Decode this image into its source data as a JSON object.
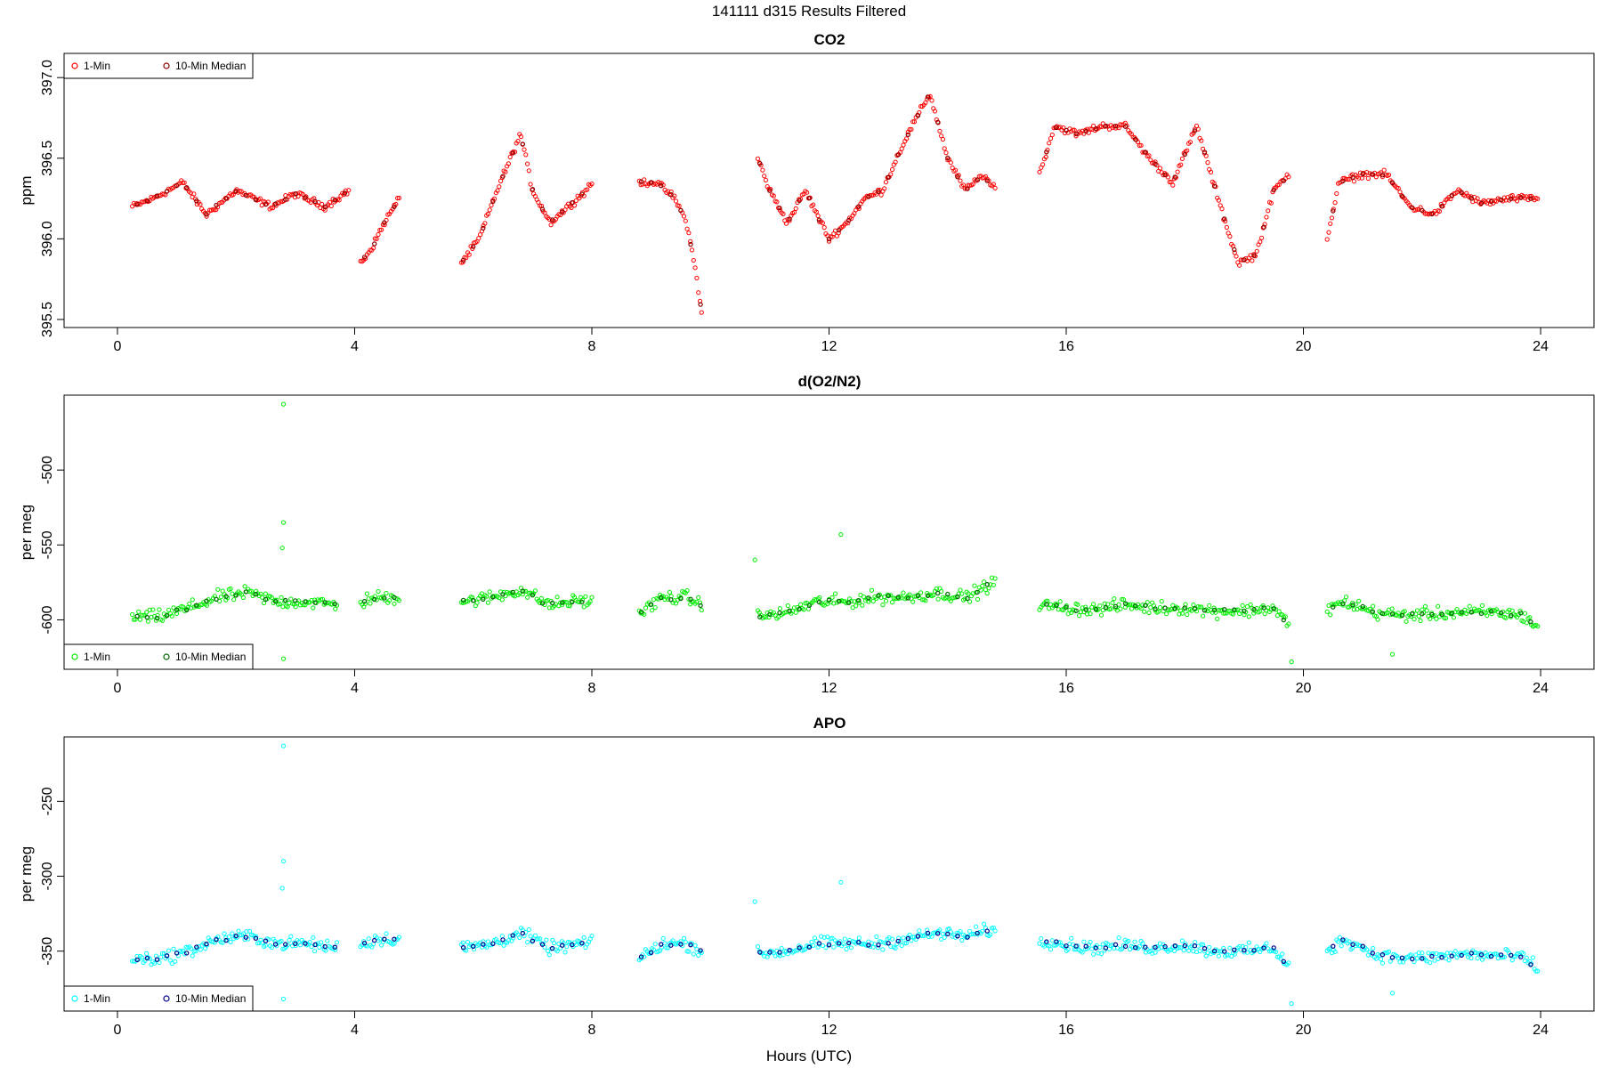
{
  "figure": {
    "title": "141111   d315   Results Filtered",
    "xlabel": "Hours (UTC)"
  },
  "chart_data": [
    {
      "type": "scatter",
      "title": "CO2",
      "ylabel": "ppm",
      "xlim": [
        -0.9,
        24.9
      ],
      "ylim": [
        395.45,
        397.15
      ],
      "xticks": [
        0,
        4,
        8,
        12,
        16,
        20,
        24
      ],
      "xtick_labels": [
        "0",
        "4",
        "8",
        "12",
        "16",
        "20",
        "24"
      ],
      "yticks": [
        395.5,
        396.0,
        396.5,
        397.0
      ],
      "ytick_labels": [
        "395.5",
        "396.0",
        "396.5",
        "397.0"
      ],
      "legend_position": "top-left",
      "series": [
        {
          "name": "1-Min",
          "color": "#ff0000"
        },
        {
          "name": "10-Min Median",
          "color": "#8b0000"
        }
      ],
      "segments": [
        {
          "x": [
            0.25,
            0.6,
            1.1,
            1.5,
            2.0,
            2.6,
            3.0,
            3.5,
            3.9
          ],
          "y": [
            396.2,
            396.25,
            396.35,
            396.15,
            396.3,
            396.2,
            396.28,
            396.2,
            396.3
          ]
        },
        {
          "x": [
            4.1,
            4.3,
            4.5,
            4.75
          ],
          "y": [
            395.85,
            395.95,
            396.1,
            396.25
          ]
        },
        {
          "x": [
            5.8,
            6.1,
            6.4,
            6.8,
            7.0,
            7.3,
            7.6,
            7.9,
            8.0
          ],
          "y": [
            395.85,
            396.0,
            396.3,
            396.65,
            396.3,
            396.1,
            396.2,
            396.3,
            396.35
          ]
        },
        {
          "x": [
            8.8,
            9.1,
            9.4,
            9.6,
            9.75,
            9.85
          ],
          "y": [
            396.35,
            396.35,
            396.25,
            396.1,
            395.8,
            395.55
          ]
        },
        {
          "x": [
            10.8,
            11.0,
            11.3,
            11.6,
            12.0,
            12.3,
            12.6,
            12.9,
            13.2,
            13.4,
            13.7,
            14.0,
            14.3,
            14.6,
            14.8
          ],
          "y": [
            396.5,
            396.3,
            396.1,
            396.3,
            396.0,
            396.1,
            396.25,
            396.3,
            396.55,
            396.7,
            396.9,
            396.5,
            396.3,
            396.4,
            396.3
          ]
        },
        {
          "x": [
            15.55,
            15.8,
            16.2,
            16.6,
            17.0,
            17.4,
            17.8,
            18.2,
            18.6,
            18.9,
            19.2,
            19.5,
            19.75
          ],
          "y": [
            396.4,
            396.7,
            396.65,
            396.7,
            396.7,
            396.5,
            396.35,
            396.7,
            396.2,
            395.85,
            395.9,
            396.3,
            396.4
          ]
        },
        {
          "x": [
            20.4,
            20.6,
            21.0,
            21.4,
            21.8,
            22.2,
            22.6,
            23.0,
            23.5,
            23.95
          ],
          "y": [
            396.0,
            396.35,
            396.4,
            396.4,
            396.2,
            396.15,
            396.3,
            396.22,
            396.25,
            396.25
          ]
        }
      ]
    },
    {
      "type": "scatter",
      "title": "d(O2/N2)",
      "ylabel": "per meg",
      "xlim": [
        -0.9,
        24.9
      ],
      "ylim": [
        -633,
        -450
      ],
      "xticks": [
        0,
        4,
        8,
        12,
        16,
        20,
        24
      ],
      "xtick_labels": [
        "0",
        "4",
        "8",
        "12",
        "16",
        "20",
        "24"
      ],
      "yticks": [
        -600,
        -550,
        -500
      ],
      "ytick_labels": [
        "-600",
        "-550",
        "-500"
      ],
      "legend_position": "bottom-left",
      "series": [
        {
          "name": "1-Min",
          "color": "#00ee00"
        },
        {
          "name": "10-Min Median",
          "color": "#006400"
        }
      ],
      "segments": [
        {
          "x": [
            0.25,
            0.7,
            1.2,
            1.7,
            2.2,
            2.7,
            3.2,
            3.7
          ],
          "y": [
            -598,
            -598,
            -592,
            -585,
            -582,
            -588,
            -588,
            -590
          ]
        },
        {
          "x": [
            4.1,
            4.4,
            4.75
          ],
          "y": [
            -588,
            -585,
            -585
          ]
        },
        {
          "x": [
            5.8,
            6.3,
            6.8,
            7.3,
            7.8,
            8.0
          ],
          "y": [
            -588,
            -585,
            -580,
            -590,
            -587,
            -588
          ]
        },
        {
          "x": [
            8.8,
            9.2,
            9.6,
            9.85
          ],
          "y": [
            -596,
            -585,
            -585,
            -590
          ]
        },
        {
          "x": [
            10.8,
            11.3,
            11.8,
            12.3,
            12.8,
            13.3,
            13.8,
            14.3,
            14.8
          ],
          "y": [
            -598,
            -595,
            -588,
            -588,
            -585,
            -585,
            -582,
            -585,
            -575
          ]
        },
        {
          "x": [
            15.55,
            16.0,
            16.5,
            17.0,
            17.5,
            18.0,
            18.5,
            19.0,
            19.5,
            19.75
          ],
          "y": [
            -590,
            -592,
            -593,
            -590,
            -592,
            -592,
            -594,
            -594,
            -592,
            -603
          ]
        },
        {
          "x": [
            20.4,
            20.7,
            21.2,
            21.7,
            22.2,
            22.7,
            23.2,
            23.7,
            23.95
          ],
          "y": [
            -593,
            -588,
            -595,
            -597,
            -596,
            -595,
            -595,
            -597,
            -605
          ]
        }
      ],
      "outliers": [
        {
          "x": 2.8,
          "y": -456
        },
        {
          "x": 2.8,
          "y": -535
        },
        {
          "x": 2.78,
          "y": -552
        },
        {
          "x": 2.8,
          "y": -626
        },
        {
          "x": 12.2,
          "y": -543
        },
        {
          "x": 10.75,
          "y": -560
        },
        {
          "x": 19.8,
          "y": -628
        },
        {
          "x": 21.5,
          "y": -623
        }
      ]
    },
    {
      "type": "scatter",
      "title": "APO",
      "ylabel": "per meg",
      "xlim": [
        -0.9,
        24.9
      ],
      "ylim": [
        -390,
        -207
      ],
      "xticks": [
        0,
        4,
        8,
        12,
        16,
        20,
        24
      ],
      "xtick_labels": [
        "0",
        "4",
        "8",
        "12",
        "16",
        "20",
        "24"
      ],
      "yticks": [
        -350,
        -300,
        -250
      ],
      "ytick_labels": [
        "-350",
        "-300",
        "-250"
      ],
      "legend_position": "bottom-left",
      "series": [
        {
          "name": "1-Min",
          "color": "#00ffff"
        },
        {
          "name": "10-Min Median",
          "color": "#00008b"
        }
      ],
      "segments": [
        {
          "x": [
            0.25,
            0.7,
            1.2,
            1.7,
            2.2,
            2.7,
            3.2,
            3.7
          ],
          "y": [
            -355,
            -355,
            -350,
            -342,
            -340,
            -345,
            -345,
            -348
          ]
        },
        {
          "x": [
            4.1,
            4.4,
            4.75
          ],
          "y": [
            -345,
            -342,
            -342
          ]
        },
        {
          "x": [
            5.8,
            6.3,
            6.8,
            7.3,
            7.8,
            8.0
          ],
          "y": [
            -348,
            -345,
            -338,
            -348,
            -345,
            -345
          ]
        },
        {
          "x": [
            8.8,
            9.2,
            9.6,
            9.85
          ],
          "y": [
            -355,
            -345,
            -345,
            -350
          ]
        },
        {
          "x": [
            10.8,
            11.3,
            11.8,
            12.3,
            12.8,
            13.3,
            13.8,
            14.3,
            14.8
          ],
          "y": [
            -352,
            -350,
            -345,
            -345,
            -345,
            -342,
            -338,
            -340,
            -335
          ]
        },
        {
          "x": [
            15.55,
            16.0,
            16.5,
            17.0,
            17.5,
            18.0,
            18.5,
            19.0,
            19.5,
            19.75
          ],
          "y": [
            -342,
            -346,
            -348,
            -346,
            -348,
            -346,
            -350,
            -350,
            -348,
            -360
          ]
        },
        {
          "x": [
            20.4,
            20.7,
            21.2,
            21.7,
            22.2,
            22.7,
            23.2,
            23.7,
            23.95
          ],
          "y": [
            -350,
            -342,
            -352,
            -355,
            -354,
            -352,
            -353,
            -354,
            -362
          ]
        }
      ],
      "outliers": [
        {
          "x": 2.8,
          "y": -213
        },
        {
          "x": 2.8,
          "y": -290
        },
        {
          "x": 2.78,
          "y": -308
        },
        {
          "x": 2.8,
          "y": -382
        },
        {
          "x": 12.2,
          "y": -304
        },
        {
          "x": 10.75,
          "y": -317
        },
        {
          "x": 19.8,
          "y": -385
        },
        {
          "x": 21.5,
          "y": -378
        }
      ]
    }
  ]
}
